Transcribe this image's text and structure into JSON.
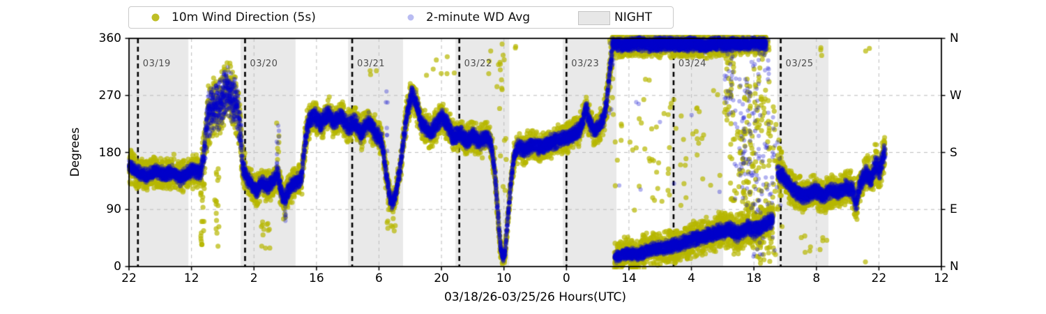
{
  "figure": {
    "background": "#ffffff"
  },
  "legend": {
    "items": [
      {
        "label": "10m Wind Direction (5s)",
        "marker": "dot",
        "color": "rgba(180,180,0,0.85)"
      },
      {
        "label": "2-minute WD Avg",
        "marker": "dot",
        "color": "rgba(70,80,220,0.38)"
      },
      {
        "label": "NIGHT",
        "marker": "patch",
        "color": "#e7e7e7"
      }
    ]
  },
  "axes": {
    "ylabel": "Degrees",
    "xlabel": "03/18/26-03/25/26  Hours(UTC)"
  },
  "chart_data": {
    "type": "scatter",
    "title": "",
    "xlabel": "03/18/26-03/25/26  Hours(UTC)",
    "ylabel": "Degrees",
    "ylim": [
      0,
      360
    ],
    "x_total_hours": 182,
    "x_start": "03/18 22:00 UTC",
    "grid": true,
    "legend_position": "top",
    "x_ticks": {
      "step_hours": 14,
      "labels": [
        "22",
        "12",
        "2",
        "16",
        "6",
        "20",
        "10",
        "0",
        "14",
        "4",
        "18",
        "8",
        "22",
        "12"
      ]
    },
    "y_ticks": [
      {
        "deg": 0,
        "left": "0",
        "right": "N"
      },
      {
        "deg": 90,
        "left": "90",
        "right": "E"
      },
      {
        "deg": 180,
        "left": "180",
        "right": "S"
      },
      {
        "deg": 270,
        "left": "270",
        "right": "W"
      },
      {
        "deg": 360,
        "left": "360",
        "right": "N"
      }
    ],
    "date_lines": [
      {
        "h": 2,
        "label": "03/19"
      },
      {
        "h": 26,
        "label": "03/20"
      },
      {
        "h": 50,
        "label": "03/21"
      },
      {
        "h": 74,
        "label": "03/22"
      },
      {
        "h": 98,
        "label": "03/23"
      },
      {
        "h": 122,
        "label": "03/24"
      },
      {
        "h": 146,
        "label": "03/25"
      }
    ],
    "night_regions": [
      [
        0,
        13.3
      ],
      [
        25.0,
        37.3
      ],
      [
        49.1,
        61.4
      ],
      [
        73.1,
        85.2
      ],
      [
        97.2,
        109.2
      ],
      [
        121.1,
        133.1
      ],
      [
        145.2,
        156.7
      ]
    ],
    "series": [
      {
        "name": "10m Wind Direction (5s)",
        "color": "rgba(183,183,0,0.7)",
        "radius": 3.6
      },
      {
        "name": "2-minute WD Avg",
        "color": "rgba(0,0,205,0.3)",
        "radius": 3.1
      }
    ],
    "paths": [
      {
        "points": [
          [
            0,
            158,
            12,
            30
          ],
          [
            2,
            148,
            12,
            28
          ],
          [
            4,
            143,
            12,
            28
          ],
          [
            6,
            150,
            12,
            28
          ],
          [
            8,
            145,
            12,
            28
          ],
          [
            10,
            150,
            12,
            28
          ],
          [
            11.5,
            138,
            12,
            28
          ],
          [
            13,
            148,
            13,
            29
          ],
          [
            14.5,
            152,
            13,
            29
          ],
          [
            16,
            148,
            13,
            29
          ],
          [
            16.8,
            180,
            24,
            40
          ],
          [
            17.6,
            235,
            40,
            52
          ],
          [
            18.6,
            252,
            44,
            55
          ],
          [
            19.6,
            248,
            44,
            55
          ],
          [
            20.6,
            262,
            44,
            55
          ],
          [
            21.6,
            274,
            42,
            52
          ],
          [
            22.1,
            284,
            38,
            48
          ],
          [
            22.7,
            270,
            44,
            55
          ],
          [
            23.6,
            260,
            44,
            55
          ],
          [
            24.4,
            248,
            40,
            50
          ],
          [
            25,
            208,
            34,
            45
          ],
          [
            25.5,
            158,
            18,
            34
          ],
          [
            26.5,
            138,
            13,
            28
          ],
          [
            27.5,
            130,
            13,
            28
          ],
          [
            28.6,
            118,
            15,
            29
          ],
          [
            29.6,
            133,
            13,
            28
          ],
          [
            31,
            126,
            13,
            28
          ],
          [
            32.4,
            136,
            13,
            28
          ],
          [
            33.2,
            148,
            17,
            30
          ],
          [
            34.1,
            118,
            14,
            28
          ],
          [
            34.9,
            104,
            14,
            27
          ],
          [
            36,
            126,
            13,
            28
          ],
          [
            37.5,
            133,
            13,
            28
          ],
          [
            38.7,
            140,
            13,
            28
          ],
          [
            39.3,
            190,
            17,
            32
          ],
          [
            40.2,
            228,
            15,
            29
          ],
          [
            41.6,
            238,
            15,
            29
          ],
          [
            43,
            225,
            15,
            29
          ],
          [
            44.6,
            242,
            15,
            29
          ],
          [
            46,
            228,
            15,
            29
          ],
          [
            47.6,
            238,
            15,
            29
          ],
          [
            49,
            220,
            15,
            29
          ],
          [
            50.6,
            230,
            15,
            29
          ],
          [
            52,
            208,
            15,
            29
          ],
          [
            53.6,
            230,
            15,
            29
          ],
          [
            55,
            213,
            15,
            29
          ],
          [
            56.6,
            198,
            15,
            29
          ],
          [
            57.4,
            158,
            14,
            28
          ],
          [
            58.3,
            112,
            13,
            25
          ],
          [
            58.9,
            100,
            12,
            23
          ],
          [
            59.7,
            112,
            12,
            23
          ],
          [
            60.6,
            148,
            13,
            25
          ],
          [
            61.6,
            205,
            15,
            29
          ],
          [
            62.4,
            248,
            15,
            29
          ],
          [
            63.3,
            270,
            15,
            29
          ],
          [
            64.3,
            260,
            15,
            29
          ],
          [
            65.2,
            233,
            15,
            29
          ],
          [
            66.2,
            220,
            15,
            29
          ],
          [
            67.6,
            210,
            15,
            29
          ],
          [
            69,
            226,
            15,
            29
          ],
          [
            70.2,
            238,
            15,
            29
          ],
          [
            71.6,
            220,
            15,
            29
          ],
          [
            72.6,
            204,
            15,
            29
          ],
          [
            74.1,
            210,
            15,
            29
          ],
          [
            75.6,
            197,
            15,
            29
          ],
          [
            77.1,
            206,
            15,
            29
          ],
          [
            78.6,
            197,
            15,
            29
          ],
          [
            80.1,
            204,
            15,
            29
          ],
          [
            81.1,
            194,
            13,
            27
          ],
          [
            81.9,
            152,
            12,
            23
          ],
          [
            82.6,
            88,
            10,
            19
          ],
          [
            83.2,
            28,
            9,
            17
          ],
          [
            83.8,
            13,
            9,
            17
          ],
          [
            84.3,
            24,
            9,
            17
          ],
          [
            84.8,
            72,
            10,
            19
          ],
          [
            85.5,
            128,
            11,
            21
          ],
          [
            86.2,
            172,
            13,
            25
          ],
          [
            87.1,
            190,
            14,
            27
          ],
          [
            88.6,
            184,
            14,
            27
          ],
          [
            90.1,
            191,
            14,
            27
          ],
          [
            92.1,
            187,
            14,
            27
          ],
          [
            94.1,
            195,
            14,
            27
          ],
          [
            96.1,
            199,
            14,
            27
          ],
          [
            98.1,
            204,
            14,
            27
          ],
          [
            99.6,
            210,
            14,
            27
          ],
          [
            101.1,
            217,
            14,
            27
          ],
          [
            102.4,
            248,
            15,
            27
          ],
          [
            103.3,
            226,
            14,
            27
          ],
          [
            104.3,
            214,
            14,
            27
          ],
          [
            105.3,
            221,
            14,
            27
          ],
          [
            106.3,
            234,
            15,
            27
          ],
          [
            107.1,
            262,
            15,
            27
          ],
          [
            107.7,
            308,
            15,
            26
          ],
          [
            108.3,
            344,
            13,
            24
          ]
        ]
      },
      {
        "points": [
          [
            108.3,
            352,
            13,
            23
          ],
          [
            111,
            349,
            13,
            23
          ],
          [
            114,
            352,
            13,
            23
          ],
          [
            117,
            349,
            13,
            23
          ],
          [
            120,
            352,
            13,
            23
          ],
          [
            123,
            350,
            13,
            23
          ],
          [
            126,
            352,
            13,
            23
          ],
          [
            129,
            349,
            13,
            23
          ],
          [
            132,
            352,
            13,
            23
          ],
          [
            134.5,
            350,
            12,
            22
          ],
          [
            136.5,
            352,
            11,
            20
          ],
          [
            138.5,
            350,
            11,
            20
          ],
          [
            140.5,
            352,
            11,
            20
          ],
          [
            142.8,
            351,
            11,
            20
          ]
        ]
      },
      {
        "points": [
          [
            108.8,
            14,
            10,
            26
          ],
          [
            111,
            21,
            11,
            28
          ],
          [
            114,
            19,
            11,
            28
          ],
          [
            117,
            27,
            12,
            30
          ],
          [
            120,
            30,
            12,
            30
          ],
          [
            123,
            35,
            13,
            31
          ],
          [
            126,
            42,
            13,
            31
          ],
          [
            129,
            47,
            13,
            32
          ],
          [
            132,
            54,
            14,
            33
          ],
          [
            134.5,
            58,
            14,
            33
          ],
          [
            136.5,
            51,
            14,
            33
          ],
          [
            138.5,
            61,
            14,
            33
          ],
          [
            140.5,
            57,
            14,
            33
          ],
          [
            142.5,
            67,
            14,
            33
          ],
          [
            144.3,
            74,
            14,
            33
          ]
        ]
      },
      {
        "points": [
          [
            145.3,
            150,
            14,
            30
          ],
          [
            146.6,
            141,
            14,
            30
          ],
          [
            148.1,
            127,
            14,
            30
          ],
          [
            149.6,
            117,
            14,
            31
          ],
          [
            151.6,
            111,
            14,
            31
          ],
          [
            153.6,
            120,
            14,
            31
          ],
          [
            155.6,
            111,
            14,
            31
          ],
          [
            157.6,
            121,
            14,
            31
          ],
          [
            159.1,
            117,
            14,
            31
          ],
          [
            160.6,
            127,
            15,
            32
          ],
          [
            162.1,
            121,
            15,
            32
          ],
          [
            162.9,
            96,
            14,
            29
          ],
          [
            163.7,
            129,
            15,
            32
          ],
          [
            165.1,
            147,
            16,
            33
          ],
          [
            166.3,
            139,
            16,
            33
          ],
          [
            167.3,
            160,
            17,
            35
          ],
          [
            168.1,
            151,
            17,
            35
          ],
          [
            168.9,
            172,
            18,
            37
          ],
          [
            169.4,
            183,
            18,
            37
          ]
        ]
      }
    ],
    "columns": [
      [
        16.1,
        16.9,
        20,
        150,
        22,
        0
      ],
      [
        19.3,
        20.2,
        30,
        160,
        16,
        0
      ],
      [
        29.3,
        31.6,
        25,
        85,
        12,
        0
      ],
      [
        34.5,
        35.1,
        72,
        100,
        5,
        6
      ],
      [
        33,
        33.6,
        150,
        232,
        6,
        8
      ],
      [
        54,
        55.8,
        300,
        340,
        3,
        0
      ],
      [
        57.8,
        59.8,
        52,
        92,
        10,
        0
      ],
      [
        57.4,
        58,
        180,
        285,
        0,
        7
      ],
      [
        66,
        73,
        290,
        338,
        7,
        0
      ],
      [
        80.6,
        81.4,
        300,
        360,
        3,
        0
      ],
      [
        81.8,
        84.6,
        245,
        360,
        12,
        0
      ],
      [
        82,
        84.6,
        95,
        240,
        8,
        0
      ],
      [
        86.1,
        86.7,
        330,
        350,
        2,
        0
      ],
      [
        107.4,
        108.6,
        238,
        358,
        16,
        8
      ],
      [
        108.8,
        121.8,
        85,
        300,
        38,
        5
      ],
      [
        121.8,
        133.4,
        80,
        285,
        26,
        3
      ],
      [
        133.5,
        135.4,
        230,
        360,
        35,
        28
      ],
      [
        134.7,
        136.8,
        5,
        360,
        30,
        8
      ],
      [
        136.7,
        139.4,
        90,
        300,
        55,
        50
      ],
      [
        139.4,
        141,
        5,
        338,
        35,
        28
      ],
      [
        140.9,
        143.4,
        5,
        360,
        60,
        48
      ],
      [
        143.4,
        144.9,
        5,
        258,
        28,
        14
      ],
      [
        145.1,
        146.3,
        60,
        200,
        18,
        5
      ],
      [
        150,
        168,
        2,
        58,
        10,
        0
      ],
      [
        152.6,
        156,
        332,
        356,
        3,
        0
      ],
      [
        164.6,
        166,
        333,
        352,
        2,
        0
      ]
    ],
    "render": {
      "step": 0.045,
      "yellow_per_step": 2,
      "blue_per_step": 3,
      "seed": 7
    },
    "style": {
      "night_fill": "#e9e9e9",
      "grid_color": "#c0c0c0",
      "date_line_color": "#000000",
      "spine_color": "#000000",
      "yellow": "rgba(183,183,0,0.7)",
      "blue": "rgba(0,0,205,0.3)"
    }
  }
}
